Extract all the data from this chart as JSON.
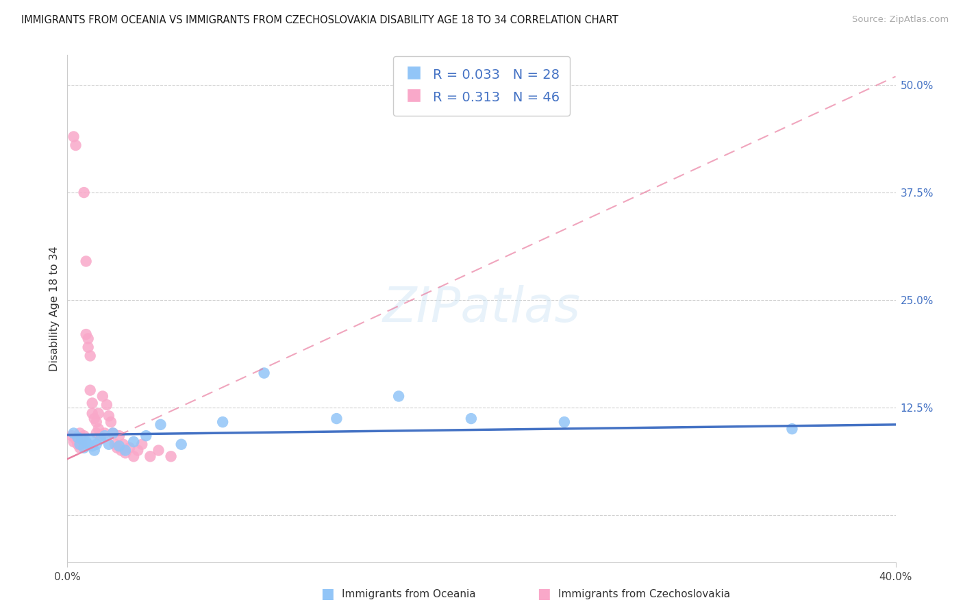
{
  "title": "IMMIGRANTS FROM OCEANIA VS IMMIGRANTS FROM CZECHOSLOVAKIA DISABILITY AGE 18 TO 34 CORRELATION CHART",
  "source": "Source: ZipAtlas.com",
  "ylabel": "Disability Age 18 to 34",
  "y_ticks": [
    0.0,
    0.125,
    0.25,
    0.375,
    0.5
  ],
  "y_tick_labels": [
    "",
    "12.5%",
    "25.0%",
    "37.5%",
    "50.0%"
  ],
  "xmin": 0.0,
  "xmax": 0.4,
  "ymin": -0.055,
  "ymax": 0.535,
  "legend_label_1": "Immigrants from Oceania",
  "legend_label_2": "Immigrants from Czechoslovakia",
  "r1": 0.033,
  "n1": 28,
  "r2": 0.313,
  "n2": 46,
  "color_oceania": "#92c5f7",
  "color_czech": "#f9a8c9",
  "color_line_oceania": "#4472c4",
  "color_line_czech": "#e8759a",
  "oceania_x": [
    0.003,
    0.005,
    0.006,
    0.007,
    0.008,
    0.009,
    0.01,
    0.011,
    0.012,
    0.013,
    0.014,
    0.016,
    0.018,
    0.02,
    0.022,
    0.025,
    0.028,
    0.032,
    0.038,
    0.045,
    0.055,
    0.075,
    0.095,
    0.13,
    0.16,
    0.195,
    0.24,
    0.35
  ],
  "oceania_y": [
    0.095,
    0.09,
    0.082,
    0.088,
    0.078,
    0.085,
    0.082,
    0.088,
    0.08,
    0.075,
    0.082,
    0.088,
    0.092,
    0.082,
    0.095,
    0.08,
    0.075,
    0.085,
    0.092,
    0.105,
    0.082,
    0.108,
    0.165,
    0.112,
    0.138,
    0.112,
    0.108,
    0.1
  ],
  "czech_x": [
    0.002,
    0.003,
    0.003,
    0.004,
    0.004,
    0.005,
    0.005,
    0.006,
    0.006,
    0.007,
    0.007,
    0.008,
    0.008,
    0.009,
    0.009,
    0.01,
    0.01,
    0.011,
    0.011,
    0.012,
    0.012,
    0.013,
    0.014,
    0.014,
    0.015,
    0.015,
    0.016,
    0.017,
    0.018,
    0.019,
    0.02,
    0.021,
    0.022,
    0.023,
    0.024,
    0.025,
    0.026,
    0.027,
    0.028,
    0.03,
    0.032,
    0.034,
    0.036,
    0.04,
    0.044,
    0.05
  ],
  "czech_y": [
    0.092,
    0.085,
    0.44,
    0.43,
    0.088,
    0.09,
    0.082,
    0.095,
    0.078,
    0.088,
    0.082,
    0.092,
    0.375,
    0.295,
    0.21,
    0.205,
    0.195,
    0.185,
    0.145,
    0.13,
    0.118,
    0.112,
    0.108,
    0.095,
    0.1,
    0.118,
    0.092,
    0.138,
    0.095,
    0.128,
    0.115,
    0.108,
    0.095,
    0.082,
    0.078,
    0.092,
    0.075,
    0.082,
    0.072,
    0.078,
    0.068,
    0.075,
    0.082,
    0.068,
    0.075,
    0.068
  ],
  "czech_line_x0": 0.0,
  "czech_line_x1": 0.4,
  "czech_line_y0": 0.065,
  "czech_line_y1": 0.51,
  "oceania_line_x0": 0.0,
  "oceania_line_x1": 0.4,
  "oceania_line_y0": 0.093,
  "oceania_line_y1": 0.105
}
